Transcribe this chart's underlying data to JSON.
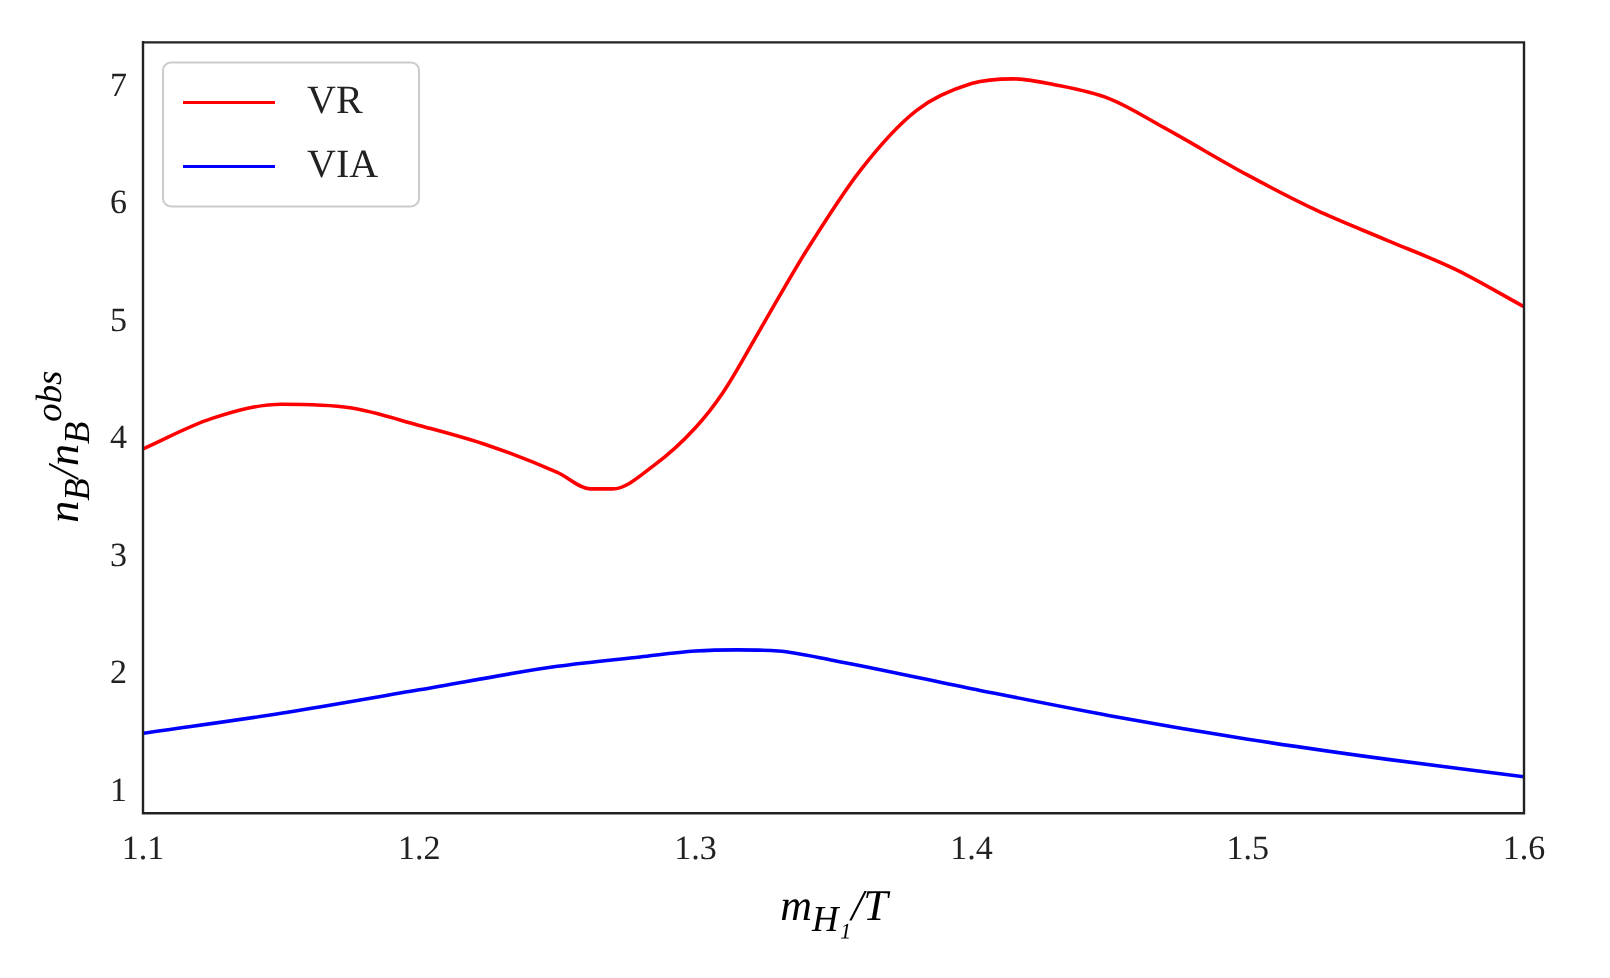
{
  "chart_data": {
    "type": "line",
    "xlabel": "m$_{H₁}$/T",
    "ylabel": "n$_{B}$/n$_{B}$$^{obs}$",
    "xlim": [
      1.1,
      1.6
    ],
    "xticks": [
      1.1,
      1.2,
      1.3,
      1.4,
      1.5,
      1.6
    ],
    "ylim": [
      0.82,
      7.38
    ],
    "yticks": [
      1,
      2,
      3,
      4,
      5,
      6,
      7
    ],
    "grid": false,
    "legend": "top left",
    "series": [
      {
        "name": "VR",
        "color": "#ff0000",
        "x": [
          1.1,
          1.125,
          1.15,
          1.175,
          1.2,
          1.225,
          1.25,
          1.262,
          1.27,
          1.285,
          1.3,
          1.31,
          1.325,
          1.34,
          1.36,
          1.38,
          1.4,
          1.415,
          1.43,
          1.45,
          1.47,
          1.5,
          1.525,
          1.55,
          1.575,
          1.6
        ],
        "values": [
          3.92,
          4.18,
          4.3,
          4.27,
          4.12,
          3.95,
          3.72,
          3.58,
          3.58,
          3.78,
          4.1,
          4.4,
          5.0,
          5.6,
          6.3,
          6.8,
          7.03,
          7.07,
          7.02,
          6.9,
          6.65,
          6.25,
          5.95,
          5.7,
          5.45,
          5.13
        ]
      },
      {
        "name": "VIA",
        "color": "#0000ff",
        "x": [
          1.1,
          1.15,
          1.2,
          1.25,
          1.28,
          1.3,
          1.315,
          1.33,
          1.35,
          1.4,
          1.45,
          1.5,
          1.55,
          1.6
        ],
        "values": [
          1.5,
          1.67,
          1.87,
          2.07,
          2.15,
          2.2,
          2.21,
          2.2,
          2.12,
          1.88,
          1.65,
          1.45,
          1.28,
          1.13
        ]
      }
    ]
  }
}
